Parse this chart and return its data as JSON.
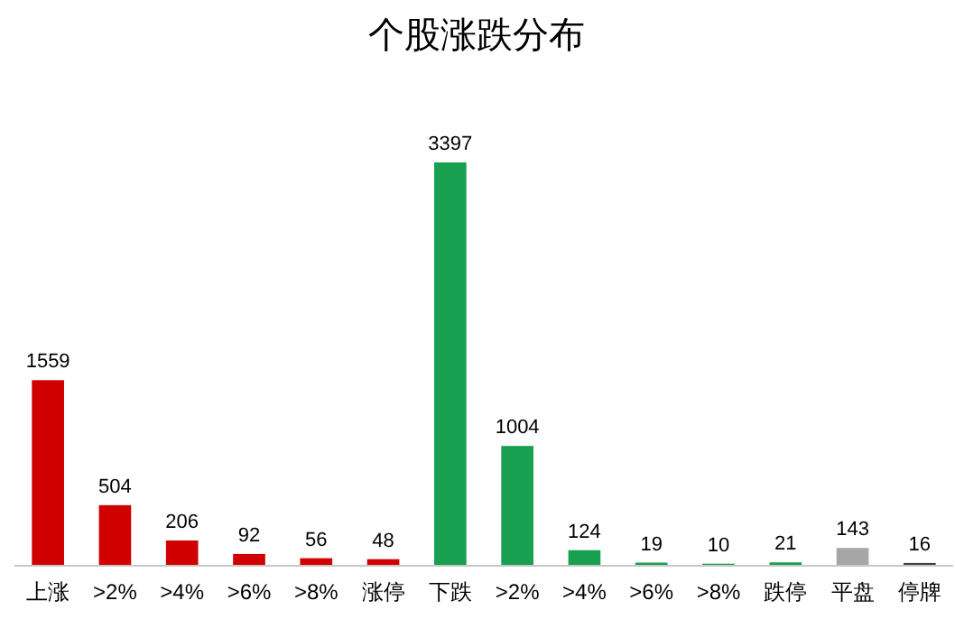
{
  "chart_data": {
    "type": "bar",
    "title": "个股涨跌分布",
    "categories": [
      "上涨",
      ">2%",
      ">4%",
      ">6%",
      ">8%",
      "涨停",
      "下跌",
      ">2%",
      ">4%",
      ">6%",
      ">8%",
      "跌停",
      "平盘",
      "停牌"
    ],
    "values": [
      1559,
      504,
      206,
      92,
      56,
      48,
      3397,
      1004,
      124,
      19,
      10,
      21,
      143,
      16
    ],
    "colors": [
      "#d00000",
      "#d00000",
      "#d00000",
      "#d00000",
      "#d00000",
      "#d00000",
      "#18a050",
      "#18a050",
      "#18a050",
      "#18a050",
      "#18a050",
      "#18a050",
      "#a6a6a6",
      "#404040"
    ],
    "data_labels": true,
    "relative": false
  }
}
